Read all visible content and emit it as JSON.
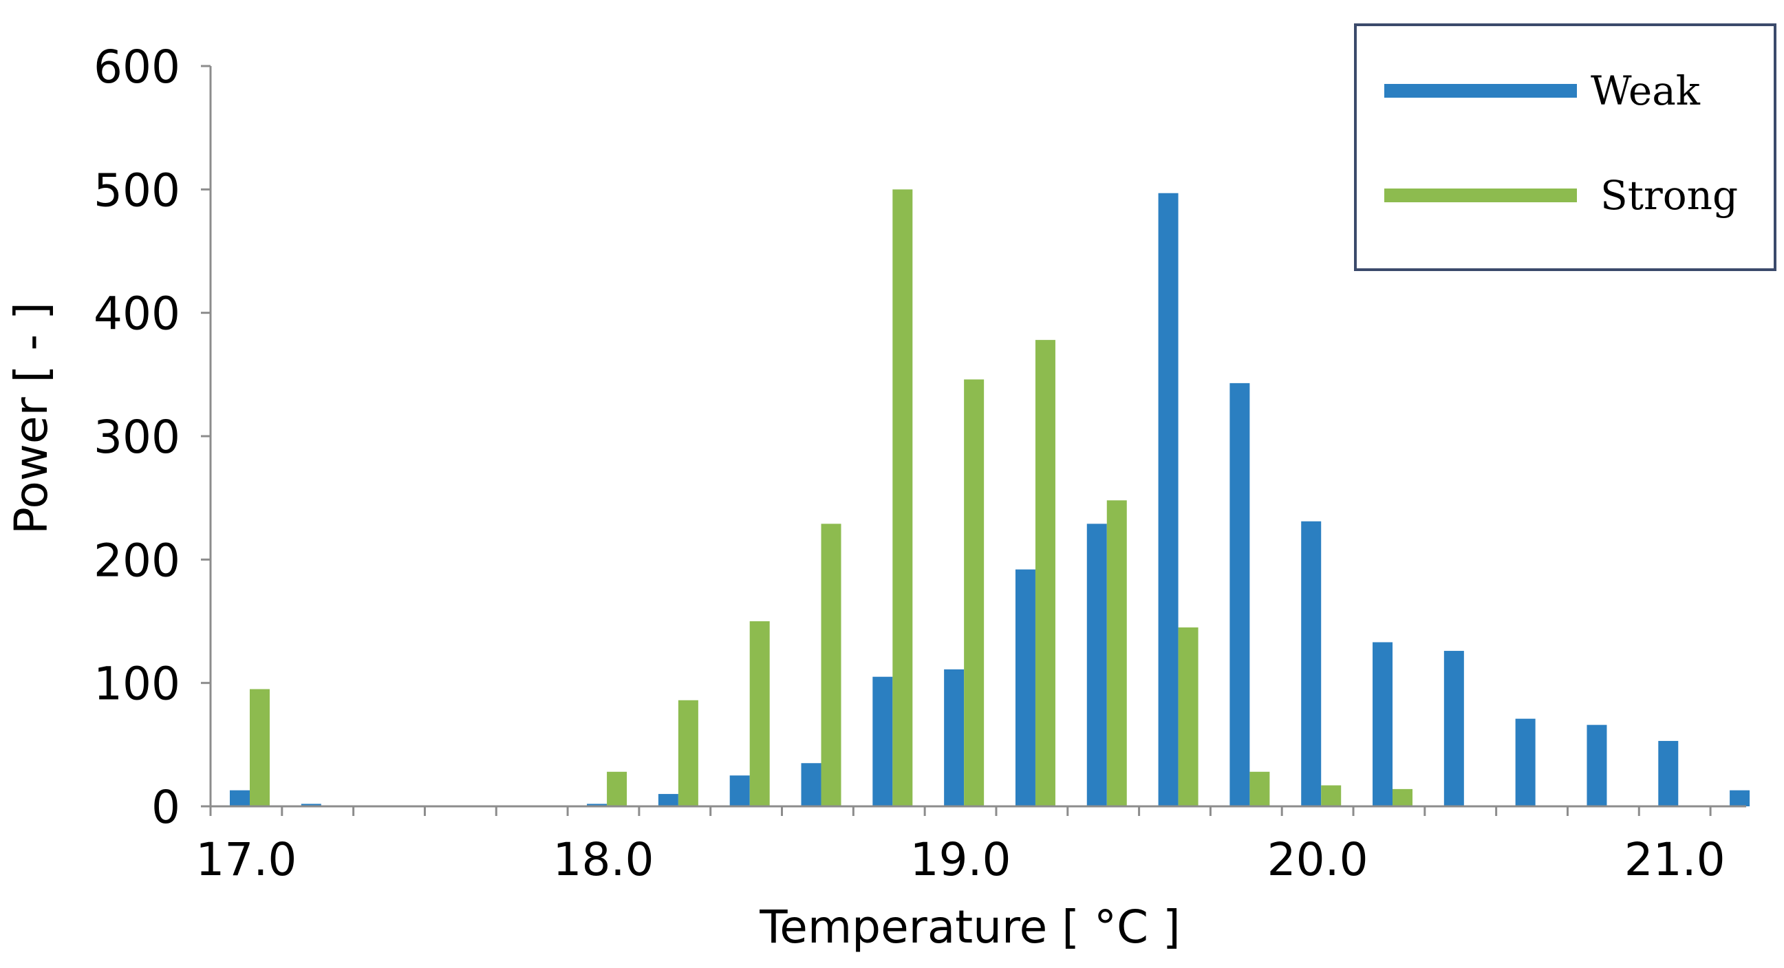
{
  "chart_data": {
    "type": "bar",
    "xlabel": "Temperature  [ °C   ]",
    "ylabel": "Power [ - ]",
    "ylim": [
      0,
      600
    ],
    "yticks": [
      0,
      100,
      200,
      300,
      400,
      500,
      600
    ],
    "xlim": [
      16.9,
      21.2
    ],
    "xticks": [
      "17.0",
      "18.0",
      "19.0",
      "20.0",
      "21.0"
    ],
    "legend_position": "top-right",
    "grid": false,
    "x": [
      16.9,
      17.1,
      17.3,
      17.5,
      17.7,
      17.9,
      18.1,
      18.3,
      18.5,
      18.7,
      18.9,
      19.1,
      19.3,
      19.5,
      19.7,
      19.9,
      20.1,
      20.3,
      20.5,
      20.7,
      20.9,
      21.1
    ],
    "series": [
      {
        "name": "Weak",
        "color": "#2b7fc1",
        "values": [
          13,
          2,
          0,
          0,
          0,
          2,
          10,
          25,
          35,
          105,
          111,
          192,
          229,
          497,
          343,
          231,
          133,
          126,
          71,
          66,
          53,
          13
        ]
      },
      {
        "name": "Strong",
        "color": "#8dbb4f",
        "values": [
          95,
          0,
          0,
          0,
          0,
          28,
          86,
          150,
          229,
          500,
          346,
          378,
          248,
          145,
          28,
          17,
          14,
          0,
          0,
          0,
          0,
          0
        ]
      }
    ]
  }
}
